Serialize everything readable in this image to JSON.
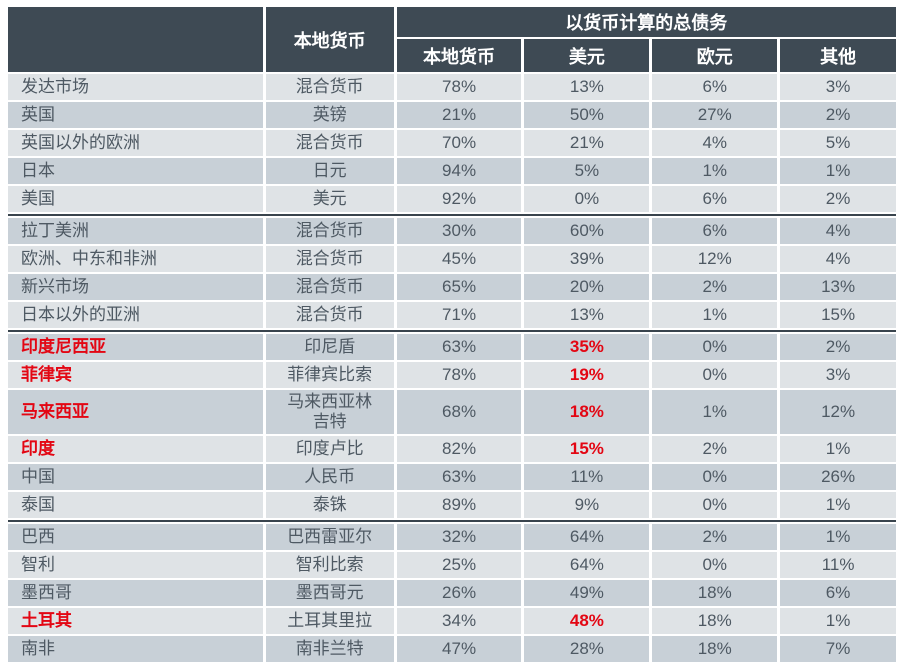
{
  "table": {
    "corner_label": "",
    "col_local_currency": "本地货币",
    "group_header": "以货币计算的总债务",
    "sub_headers": [
      "本地货币",
      "美元",
      "欧元",
      "其他"
    ],
    "rows": [
      {
        "region": "发达市场",
        "currency": "混合货币",
        "values": [
          "78%",
          "13%",
          "6%",
          "3%"
        ],
        "highlight": false,
        "usd_red": false,
        "section_start": false
      },
      {
        "region": "英国",
        "currency": "英镑",
        "values": [
          "21%",
          "50%",
          "27%",
          "2%"
        ],
        "highlight": false,
        "usd_red": false,
        "section_start": false
      },
      {
        "region": "英国以外的欧洲",
        "currency": "混合货币",
        "values": [
          "70%",
          "21%",
          "4%",
          "5%"
        ],
        "highlight": false,
        "usd_red": false,
        "section_start": false
      },
      {
        "region": "日本",
        "currency": "日元",
        "values": [
          "94%",
          "5%",
          "1%",
          "1%"
        ],
        "highlight": false,
        "usd_red": false,
        "section_start": false
      },
      {
        "region": "美国",
        "currency": "美元",
        "values": [
          "92%",
          "0%",
          "6%",
          "2%"
        ],
        "highlight": false,
        "usd_red": false,
        "section_start": false
      },
      {
        "region": "拉丁美洲",
        "currency": "混合货币",
        "values": [
          "30%",
          "60%",
          "6%",
          "4%"
        ],
        "highlight": false,
        "usd_red": false,
        "section_start": true
      },
      {
        "region": "欧洲、中东和非洲",
        "currency": "混合货币",
        "values": [
          "45%",
          "39%",
          "12%",
          "4%"
        ],
        "highlight": false,
        "usd_red": false,
        "section_start": false
      },
      {
        "region": "新兴市场",
        "currency": "混合货币",
        "values": [
          "65%",
          "20%",
          "2%",
          "13%"
        ],
        "highlight": false,
        "usd_red": false,
        "section_start": false
      },
      {
        "region": "日本以外的亚洲",
        "currency": "混合货币",
        "values": [
          "71%",
          "13%",
          "1%",
          "15%"
        ],
        "highlight": false,
        "usd_red": false,
        "section_start": false
      },
      {
        "region": "印度尼西亚",
        "currency": "印尼盾",
        "values": [
          "63%",
          "35%",
          "0%",
          "2%"
        ],
        "highlight": true,
        "usd_red": true,
        "section_start": true
      },
      {
        "region": "菲律宾",
        "currency": "菲律宾比索",
        "values": [
          "78%",
          "19%",
          "0%",
          "3%"
        ],
        "highlight": true,
        "usd_red": true,
        "section_start": false
      },
      {
        "region": "马来西亚",
        "currency": "马来西亚林吉特",
        "values": [
          "68%",
          "18%",
          "1%",
          "12%"
        ],
        "highlight": true,
        "usd_red": true,
        "section_start": false
      },
      {
        "region": "印度",
        "currency": "印度卢比",
        "values": [
          "82%",
          "15%",
          "2%",
          "1%"
        ],
        "highlight": true,
        "usd_red": true,
        "section_start": false
      },
      {
        "region": "中国",
        "currency": "人民币",
        "values": [
          "63%",
          "11%",
          "0%",
          "26%"
        ],
        "highlight": false,
        "usd_red": false,
        "section_start": false
      },
      {
        "region": "泰国",
        "currency": "泰铢",
        "values": [
          "89%",
          "9%",
          "0%",
          "1%"
        ],
        "highlight": false,
        "usd_red": false,
        "section_start": false
      },
      {
        "region": "巴西",
        "currency": "巴西雷亚尔",
        "values": [
          "32%",
          "64%",
          "2%",
          "1%"
        ],
        "highlight": false,
        "usd_red": false,
        "section_start": true
      },
      {
        "region": "智利",
        "currency": "智利比索",
        "values": [
          "25%",
          "64%",
          "0%",
          "11%"
        ],
        "highlight": false,
        "usd_red": false,
        "section_start": false
      },
      {
        "region": "墨西哥",
        "currency": "墨西哥元",
        "values": [
          "26%",
          "49%",
          "18%",
          "6%"
        ],
        "highlight": false,
        "usd_red": false,
        "section_start": false
      },
      {
        "region": "土耳其",
        "currency": "土耳其里拉",
        "values": [
          "34%",
          "48%",
          "18%",
          "1%"
        ],
        "highlight": true,
        "usd_red": true,
        "section_start": false
      },
      {
        "region": "南非",
        "currency": "南非兰特",
        "values": [
          "47%",
          "28%",
          "18%",
          "7%"
        ],
        "highlight": false,
        "usd_red": false,
        "section_start": false
      }
    ]
  },
  "colors": {
    "header_bg": "#3e4a54",
    "row_light": "#dfe3e6",
    "row_dark": "#c8d0d7",
    "separator": "#39444d",
    "highlight_red": "#e30613",
    "body_text": "#4e5963",
    "header_text": "#ffffff"
  },
  "chart_data": {
    "type": "table",
    "title": "以货币计算的总债务",
    "columns": [
      "",
      "本地货币",
      "本地货币",
      "美元",
      "欧元",
      "其他"
    ],
    "rows": [
      [
        "发达市场",
        "混合货币",
        "78%",
        "13%",
        "6%",
        "3%"
      ],
      [
        "英国",
        "英镑",
        "21%",
        "50%",
        "27%",
        "2%"
      ],
      [
        "英国以外的欧洲",
        "混合货币",
        "70%",
        "21%",
        "4%",
        "5%"
      ],
      [
        "日本",
        "日元",
        "94%",
        "5%",
        "1%",
        "1%"
      ],
      [
        "美国",
        "美元",
        "92%",
        "0%",
        "6%",
        "2%"
      ],
      [
        "拉丁美洲",
        "混合货币",
        "30%",
        "60%",
        "6%",
        "4%"
      ],
      [
        "欧洲、中东和非洲",
        "混合货币",
        "45%",
        "39%",
        "12%",
        "4%"
      ],
      [
        "新兴市场",
        "混合货币",
        "65%",
        "20%",
        "2%",
        "13%"
      ],
      [
        "日本以外的亚洲",
        "混合货币",
        "71%",
        "13%",
        "1%",
        "15%"
      ],
      [
        "印度尼西亚",
        "印尼盾",
        "63%",
        "35%",
        "0%",
        "2%"
      ],
      [
        "菲律宾",
        "菲律宾比索",
        "78%",
        "19%",
        "0%",
        "3%"
      ],
      [
        "马来西亚",
        "马来西亚林吉特",
        "68%",
        "18%",
        "1%",
        "12%"
      ],
      [
        "印度",
        "印度卢比",
        "82%",
        "15%",
        "2%",
        "1%"
      ],
      [
        "中国",
        "人民币",
        "63%",
        "11%",
        "0%",
        "26%"
      ],
      [
        "泰国",
        "泰铢",
        "89%",
        "9%",
        "0%",
        "1%"
      ],
      [
        "巴西",
        "巴西雷亚尔",
        "32%",
        "64%",
        "2%",
        "1%"
      ],
      [
        "智利",
        "智利比索",
        "25%",
        "64%",
        "0%",
        "11%"
      ],
      [
        "墨西哥",
        "墨西哥元",
        "26%",
        "49%",
        "18%",
        "6%"
      ],
      [
        "土耳其",
        "土耳其里拉",
        "34%",
        "48%",
        "18%",
        "1%"
      ],
      [
        "南非",
        "南非兰特",
        "47%",
        "28%",
        "18%",
        "7%"
      ]
    ],
    "highlighted_rows_red": [
      "印度尼西亚",
      "菲律宾",
      "马来西亚",
      "印度",
      "土耳其"
    ],
    "highlighted_usd_values_red": [
      "35%",
      "19%",
      "18%",
      "15%",
      "48%"
    ],
    "section_breaks_before": [
      "拉丁美洲",
      "印度尼西亚",
      "巴西"
    ]
  }
}
